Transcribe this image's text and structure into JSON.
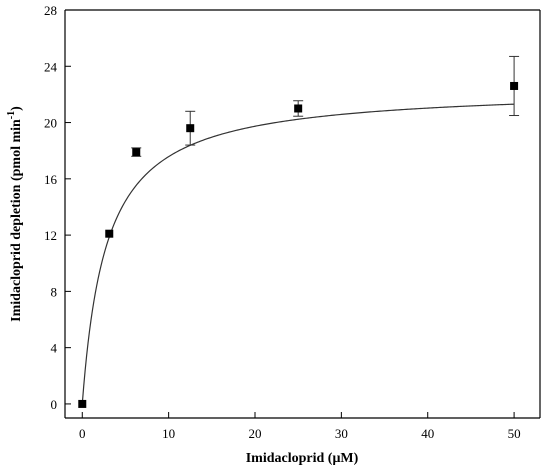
{
  "chart_data": {
    "type": "scatter",
    "title": "",
    "xlabel": "Imidacloprid (μM)",
    "ylabel_main": "Imidacloprid depletion (pmol min",
    "ylabel_sup": "-1",
    "ylabel_close": ")",
    "xlim": [
      -2,
      53
    ],
    "ylim": [
      -1,
      28
    ],
    "x_ticks": [
      0,
      10,
      20,
      30,
      40,
      50
    ],
    "y_ticks": [
      0,
      4,
      8,
      12,
      16,
      20,
      24,
      28
    ],
    "grid": false,
    "legend": "none",
    "points": [
      {
        "x": 0,
        "y": 0,
        "err": 0
      },
      {
        "x": 3.125,
        "y": 12.1,
        "err": 0
      },
      {
        "x": 6.25,
        "y": 17.9,
        "err": 0.3
      },
      {
        "x": 12.5,
        "y": 19.6,
        "err": 1.2
      },
      {
        "x": 25,
        "y": 21.0,
        "err": 0.55
      },
      {
        "x": 50,
        "y": 22.6,
        "err": 2.1
      }
    ],
    "fit": {
      "model": "michaelis-menten",
      "vmax": 22.5,
      "km": 2.8
    }
  }
}
